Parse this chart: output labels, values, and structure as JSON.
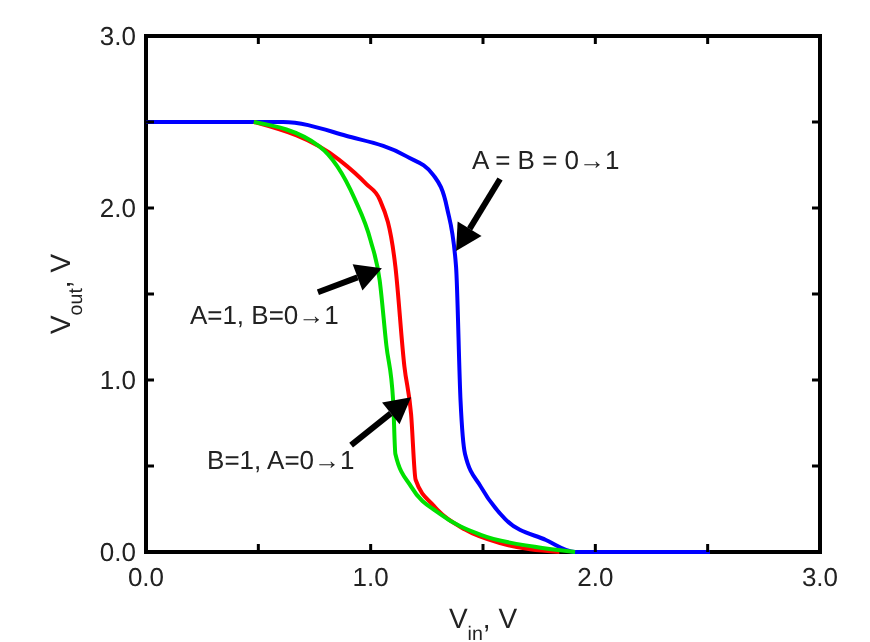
{
  "chart_data": {
    "type": "line",
    "xlabel": "V$_{in}$, V",
    "ylabel": "V$_{out}$, V",
    "xlim": [
      0,
      3
    ],
    "ylim": [
      0,
      3
    ],
    "xticks": [
      {
        "value": 0,
        "label": "0.0"
      },
      {
        "value": 0.5,
        "label": null
      },
      {
        "value": 1,
        "label": "1.0"
      },
      {
        "value": 1.5,
        "label": null
      },
      {
        "value": 2,
        "label": "2.0"
      },
      {
        "value": 2.5,
        "label": null
      },
      {
        "value": 3,
        "label": "3.0"
      }
    ],
    "yticks": [
      {
        "value": 0,
        "label": "0.0"
      },
      {
        "value": 0.5,
        "label": null
      },
      {
        "value": 1,
        "label": "1.0"
      },
      {
        "value": 1.5,
        "label": null
      },
      {
        "value": 2,
        "label": "2.0"
      },
      {
        "value": 2.5,
        "label": null
      },
      {
        "value": 3,
        "label": "3.0"
      }
    ],
    "grid": false,
    "marker": "none",
    "line_style": "solid",
    "series": [
      {
        "color": "#0000ff",
        "x": [
          0,
          0.61,
          0.89,
          1.16,
          1.28,
          1.34,
          1.38,
          1.4,
          1.42,
          1.49,
          1.6,
          1.78,
          1.91,
          2.51
        ],
        "values": [
          2.5,
          2.5,
          2.42,
          2.3,
          2.19,
          2.0,
          1.66,
          0.88,
          0.57,
          0.38,
          0.19,
          0.07,
          0.0,
          0.0
        ]
      },
      {
        "color": "#ff0000",
        "x": [
          0.48,
          0.86,
          0.98,
          1.04,
          1.11,
          1.15,
          1.18,
          1.2,
          1.28,
          1.42,
          1.58,
          1.84
        ],
        "values": [
          2.5,
          2.28,
          2.14,
          2.05,
          1.66,
          1.08,
          0.8,
          0.42,
          0.27,
          0.13,
          0.05,
          0.0
        ]
      },
      {
        "color": "#00e000",
        "x": [
          0.48,
          0.77,
          0.93,
          1.0,
          1.04,
          1.07,
          1.1,
          1.11,
          1.18,
          1.31,
          1.49,
          1.73,
          1.91
        ],
        "values": [
          2.5,
          2.36,
          2.05,
          1.81,
          1.58,
          1.2,
          0.88,
          0.57,
          0.38,
          0.22,
          0.1,
          0.03,
          0.0
        ]
      }
    ],
    "annotations": [
      {
        "text": "A = B = 0→1",
        "x": 1.38,
        "y": 1.75
      },
      {
        "text": "A=1, B=0→1",
        "x": 1.05,
        "y": 1.65
      },
      {
        "text": "B=1, A=0→1",
        "x": 1.18,
        "y": 0.9
      }
    ]
  }
}
